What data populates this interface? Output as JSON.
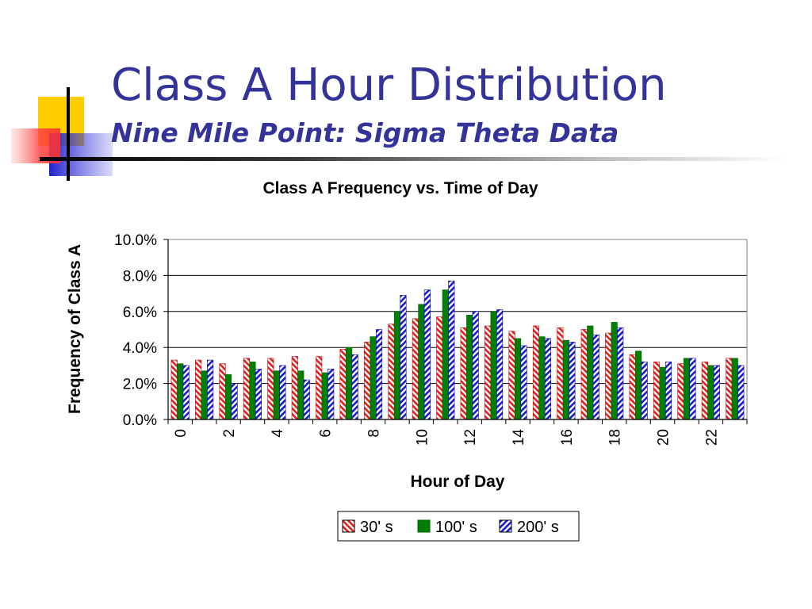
{
  "slide": {
    "title": "Class A Hour Distribution",
    "subtitle": "Nine Mile Point: Sigma Theta Data"
  },
  "chart_data": {
    "type": "bar",
    "title": "Class A Frequency vs. Time of Day",
    "xlabel": "Hour of Day",
    "ylabel": "Frequency of Class A",
    "ylim": [
      0,
      0.1
    ],
    "yticks": [
      0.0,
      0.02,
      0.04,
      0.06,
      0.08,
      0.1
    ],
    "ytick_labels": [
      "0.0%",
      "2.0%",
      "4.0%",
      "6.0%",
      "8.0%",
      "10.0%"
    ],
    "categories": [
      0,
      1,
      2,
      3,
      4,
      5,
      6,
      7,
      8,
      9,
      10,
      11,
      12,
      13,
      14,
      15,
      16,
      17,
      18,
      19,
      20,
      21,
      22,
      23
    ],
    "xtick_labels": [
      "0",
      "2",
      "4",
      "6",
      "8",
      "10",
      "12",
      "14",
      "16",
      "18",
      "20",
      "22"
    ],
    "grid": true,
    "legend_position": "bottom",
    "series": [
      {
        "name": "30' s",
        "color": "#e02020",
        "pattern": "diagonal-stripes",
        "values": [
          0.033,
          0.033,
          0.031,
          0.034,
          0.034,
          0.035,
          0.035,
          0.039,
          0.043,
          0.053,
          0.056,
          0.057,
          0.051,
          0.052,
          0.049,
          0.052,
          0.051,
          0.05,
          0.048,
          0.036,
          0.032,
          0.031,
          0.032,
          0.034
        ]
      },
      {
        "name": "100' s",
        "color": "#008000",
        "pattern": "solid",
        "values": [
          0.031,
          0.027,
          0.025,
          0.032,
          0.027,
          0.027,
          0.026,
          0.04,
          0.046,
          0.06,
          0.064,
          0.072,
          0.058,
          0.06,
          0.045,
          0.046,
          0.044,
          0.052,
          0.054,
          0.038,
          0.029,
          0.034,
          0.03,
          0.034
        ]
      },
      {
        "name": "200' s",
        "color": "#1a1ad0",
        "pattern": "diagonal-stripes",
        "values": [
          0.03,
          0.033,
          0.02,
          0.028,
          0.03,
          0.022,
          0.028,
          0.036,
          0.05,
          0.069,
          0.072,
          0.077,
          0.06,
          0.061,
          0.041,
          0.045,
          0.043,
          0.047,
          0.051,
          0.032,
          0.032,
          0.034,
          0.03,
          0.03
        ]
      }
    ]
  }
}
